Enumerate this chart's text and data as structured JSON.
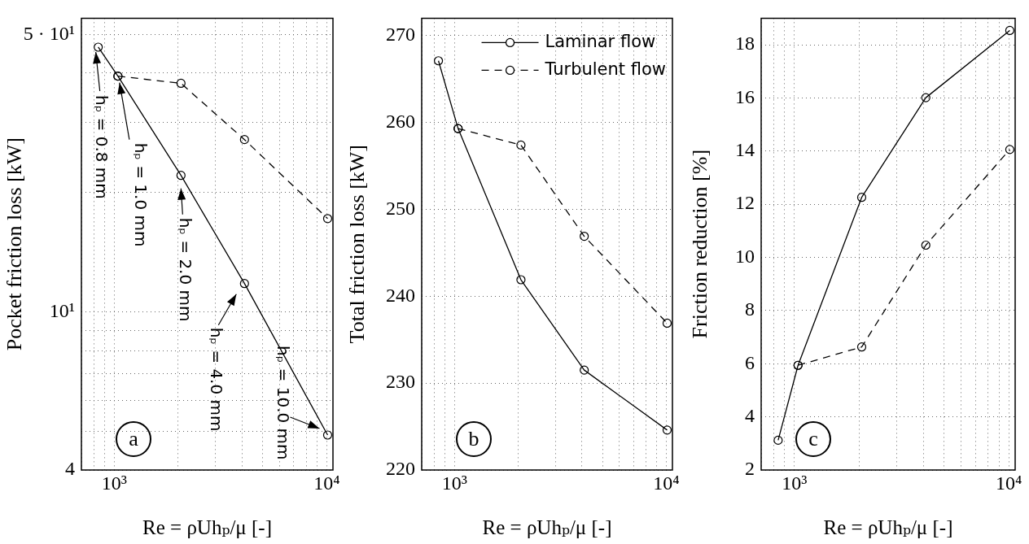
{
  "chart_data": [
    {
      "type": "line",
      "log": "xy",
      "x": [
        840,
        1040,
        2060,
        4100,
        10100
      ],
      "xlim": [
        700,
        10700
      ],
      "xticks": [
        {
          "value": 700,
          "label": null
        },
        {
          "value": 800,
          "label": null
        },
        {
          "value": 900,
          "label": null
        },
        {
          "value": 1000,
          "label": "10³"
        },
        {
          "value": 2000,
          "label": null
        },
        {
          "value": 3000,
          "label": null
        },
        {
          "value": 4000,
          "label": null
        },
        {
          "value": 5000,
          "label": null
        },
        {
          "value": 6000,
          "label": null
        },
        {
          "value": 7000,
          "label": null
        },
        {
          "value": 8000,
          "label": null
        },
        {
          "value": 9000,
          "label": null
        },
        {
          "value": 10000,
          "label": "10⁴"
        }
      ],
      "ylim": [
        4,
        55
      ],
      "yticks": [
        4,
        {
          "value": 5,
          "label": null
        },
        {
          "value": 6,
          "label": null
        },
        {
          "value": 7,
          "label": null
        },
        {
          "value": 8,
          "label": null
        },
        {
          "value": 9,
          "label": null
        },
        {
          "value": 10,
          "label": "10¹"
        },
        {
          "value": 20,
          "label": null
        },
        {
          "value": 30,
          "label": null
        },
        {
          "value": 40,
          "label": null
        },
        {
          "value": 50,
          "label": "5 · 10¹"
        }
      ],
      "xlabel": "Re = ρUhₚ/μ [-]",
      "ylabel": "Pocket friction loss [kW]",
      "grid": true,
      "marker": "circle",
      "series": [
        {
          "color": "#000000",
          "line_style": "solid",
          "values": [
            46.5,
            39.3,
            22.1,
            11.8,
            4.9
          ]
        },
        {
          "color": "#000000",
          "line_style": "dashed",
          "values": [
            null,
            39.3,
            37.7,
            27.2,
            17.2
          ]
        }
      ],
      "annotations": [
        {
          "text": "hₚ = 0.8 mm",
          "x": 840,
          "y": 46.5
        },
        {
          "text": "hₚ = 1.0 mm",
          "x": 1040,
          "y": 39.3
        },
        {
          "text": "hₚ = 2.0 mm",
          "x": 2060,
          "y": 22.1
        },
        {
          "text": "hₚ = 4.0 mm",
          "x": 4100,
          "y": 11.8
        },
        {
          "text": "hₚ = 10.0 mm",
          "x": 10100,
          "y": 4.9
        },
        "a"
      ]
    },
    {
      "type": "line",
      "log": "x",
      "x": [
        840,
        1040,
        2060,
        4100,
        10100
      ],
      "xlim": [
        700,
        10700
      ],
      "xticks": [
        {
          "value": 700,
          "label": null
        },
        {
          "value": 800,
          "label": null
        },
        {
          "value": 900,
          "label": null
        },
        {
          "value": 1000,
          "label": "10³"
        },
        {
          "value": 2000,
          "label": null
        },
        {
          "value": 3000,
          "label": null
        },
        {
          "value": 4000,
          "label": null
        },
        {
          "value": 5000,
          "label": null
        },
        {
          "value": 6000,
          "label": null
        },
        {
          "value": 7000,
          "label": null
        },
        {
          "value": 8000,
          "label": null
        },
        {
          "value": 9000,
          "label": null
        },
        {
          "value": 10000,
          "label": "10⁴"
        }
      ],
      "ylim": [
        220,
        272
      ],
      "yticks": [
        220,
        230,
        240,
        250,
        260,
        270
      ],
      "xlabel": "Re = ρUhₚ/μ [-]",
      "ylabel": "Total friction loss [kW]",
      "grid": true,
      "marker": "circle",
      "legend": "top right",
      "series": [
        {
          "name": "Laminar flow",
          "color": "#000000",
          "line_style": "solid",
          "values": [
            267.1,
            259.3,
            241.9,
            231.5,
            224.6
          ]
        },
        {
          "name": "Turbulent flow",
          "color": "#000000",
          "line_style": "dashed",
          "values": [
            null,
            259.3,
            257.4,
            246.9,
            236.9
          ]
        }
      ],
      "annotations": [
        "b"
      ]
    },
    {
      "type": "line",
      "log": "x",
      "x": [
        840,
        1040,
        2060,
        4100,
        10100
      ],
      "xlim": [
        700,
        10700
      ],
      "xticks": [
        {
          "value": 700,
          "label": null
        },
        {
          "value": 800,
          "label": null
        },
        {
          "value": 900,
          "label": null
        },
        {
          "value": 1000,
          "label": "10³"
        },
        {
          "value": 2000,
          "label": null
        },
        {
          "value": 3000,
          "label": null
        },
        {
          "value": 4000,
          "label": null
        },
        {
          "value": 5000,
          "label": null
        },
        {
          "value": 6000,
          "label": null
        },
        {
          "value": 7000,
          "label": null
        },
        {
          "value": 8000,
          "label": null
        },
        {
          "value": 9000,
          "label": null
        },
        {
          "value": 10000,
          "label": "10⁴"
        }
      ],
      "ylim": [
        2,
        19
      ],
      "yticks": [
        2,
        4,
        6,
        8,
        10,
        12,
        14,
        16,
        18
      ],
      "xlabel": "Re = ρUhₚ/μ [-]",
      "ylabel": "Friction reduction [%]",
      "grid": true,
      "marker": "circle",
      "series": [
        {
          "color": "#000000",
          "line_style": "solid",
          "values": [
            3.12,
            5.94,
            12.26,
            16.01,
            18.54
          ]
        },
        {
          "color": "#000000",
          "line_style": "dashed",
          "values": [
            null,
            5.94,
            6.63,
            10.46,
            14.06
          ]
        }
      ],
      "annotations": [
        "c"
      ]
    }
  ]
}
